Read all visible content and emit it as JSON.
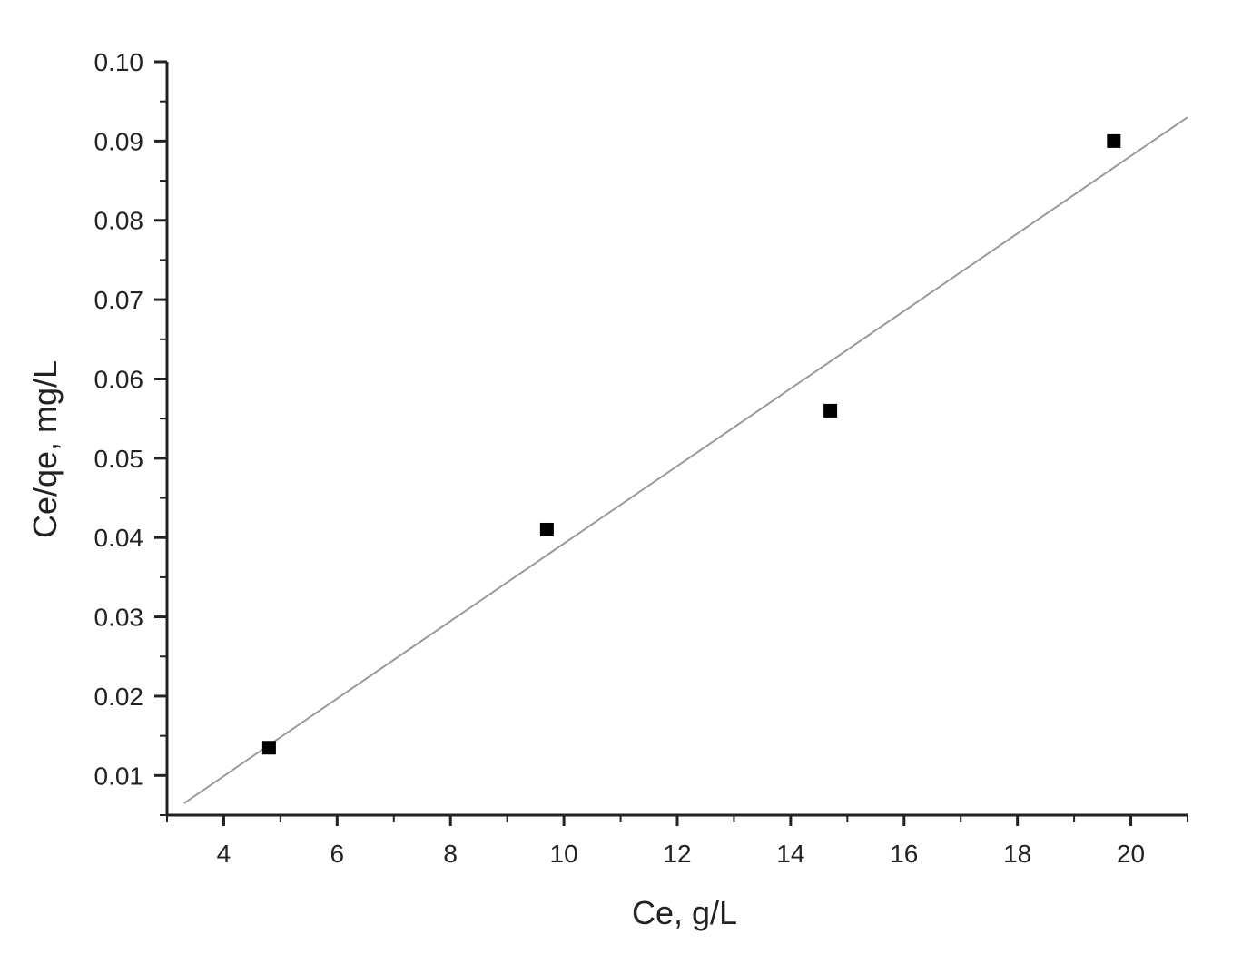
{
  "chart_data": {
    "type": "scatter",
    "title": "",
    "xlabel": "Ce, g/L",
    "ylabel": "Ce/qe, mg/L",
    "xlim": [
      3,
      21
    ],
    "ylim": [
      0.005,
      0.1
    ],
    "xticks": [
      4,
      6,
      8,
      10,
      12,
      14,
      16,
      18,
      20
    ],
    "xtick_labels": [
      "4",
      "6",
      "8",
      "10",
      "12",
      "14",
      "16",
      "18",
      "20"
    ],
    "yticks": [
      0.01,
      0.02,
      0.03,
      0.04,
      0.05,
      0.06,
      0.07,
      0.08,
      0.09,
      0.1
    ],
    "ytick_labels": [
      "0.01",
      "0.02",
      "0.03",
      "0.04",
      "0.05",
      "0.06",
      "0.07",
      "0.08",
      "0.09",
      "0.10"
    ],
    "grid": false,
    "series": [
      {
        "marker": "square",
        "x": [
          4.8,
          9.7,
          14.7,
          19.7
        ],
        "y": [
          0.0135,
          0.041,
          0.056,
          0.09
        ]
      }
    ],
    "fit_line": {
      "x": [
        3.3,
        21.0
      ],
      "y": [
        0.0065,
        0.093
      ]
    },
    "colors": {
      "marker": "#000000",
      "fit_line": "#9a9a9a",
      "axis": "#222222"
    }
  }
}
